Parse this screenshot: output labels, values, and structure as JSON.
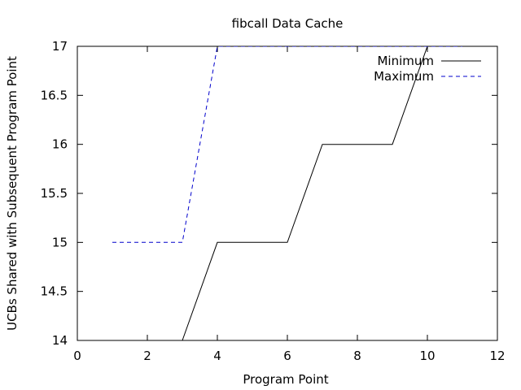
{
  "chart_data": {
    "type": "line",
    "title": "fibcall Data Cache",
    "xlabel": "Program Point",
    "ylabel": "UCBs Shared with Subsequent Program Point",
    "xlim": [
      0,
      12
    ],
    "ylim": [
      14,
      17
    ],
    "xticks": [
      "0",
      "2",
      "4",
      "6",
      "8",
      "10",
      "12"
    ],
    "yticks": [
      "14",
      "14.5",
      "15",
      "15.5",
      "16",
      "16.5",
      "17"
    ],
    "grid": false,
    "legend_position": "top-right",
    "series": [
      {
        "name": "Minimum",
        "color": "#000000",
        "style": "solid",
        "x": [
          1,
          2,
          3,
          4,
          5,
          6,
          7,
          8,
          9,
          10,
          11
        ],
        "y": [
          14,
          14,
          14,
          15,
          15,
          15,
          16,
          16,
          16,
          17,
          17
        ]
      },
      {
        "name": "Maximum",
        "color": "#0000cc",
        "style": "dashed",
        "x": [
          1,
          2,
          3,
          4,
          5,
          6,
          7,
          8,
          9,
          10,
          11
        ],
        "y": [
          15,
          15,
          15,
          17,
          17,
          17,
          17,
          17,
          17,
          17,
          17
        ]
      }
    ]
  }
}
